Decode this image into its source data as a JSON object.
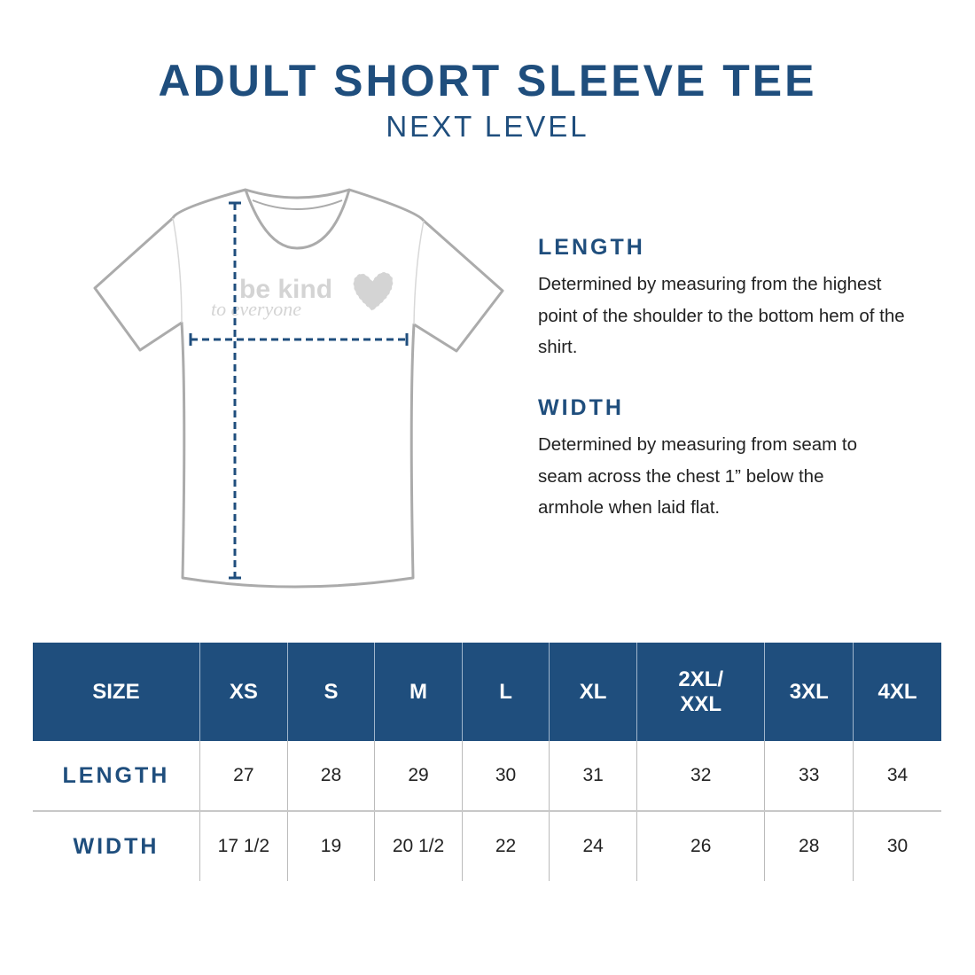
{
  "header": {
    "title": "ADULT SHORT SLEEVE TEE",
    "subtitle": "NEXT LEVEL"
  },
  "illustration": {
    "print_line1": "be kind",
    "print_line2": "to everyone",
    "accent_color": "#1f4e7d"
  },
  "sections": [
    {
      "heading": "LENGTH",
      "text": "Determined by measuring from the highest point of the shoulder to the bottom hem of the shirt."
    },
    {
      "heading": "WIDTH",
      "text": "Determined by measuring from seam to seam across the chest 1” below the armhole when laid flat."
    }
  ],
  "table": {
    "header": [
      "SIZE",
      "XS",
      "S",
      "M",
      "L",
      "XL",
      "2XL/ XXL",
      "3XL",
      "4XL"
    ],
    "rows": [
      {
        "label": "LENGTH",
        "values": [
          "27",
          "28",
          "29",
          "30",
          "31",
          "32",
          "33",
          "34"
        ]
      },
      {
        "label": "WIDTH",
        "values": [
          "17 1/2",
          "19",
          "20 1/2",
          "22",
          "24",
          "26",
          "28",
          "30"
        ]
      }
    ]
  }
}
